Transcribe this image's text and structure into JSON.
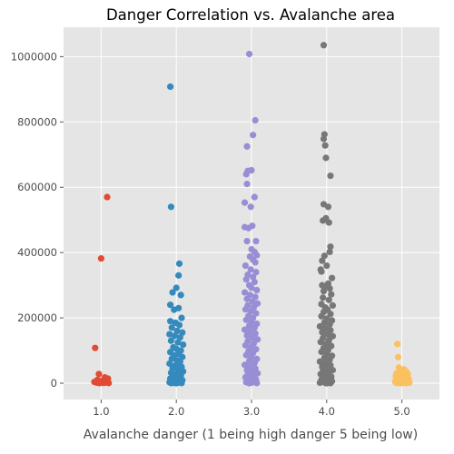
{
  "chart_data": {
    "type": "scatter",
    "title": "Danger Correlation vs. Avalanche area",
    "xlabel": "Avalanche danger (1 being high danger 5 being low)",
    "ylabel": "",
    "xlim": [
      0.5,
      5.5
    ],
    "ylim": [
      -50000,
      1090000
    ],
    "xticks": [
      1.0,
      2.0,
      3.0,
      4.0,
      5.0
    ],
    "xtick_labels": [
      "1.0",
      "2.0",
      "3.0",
      "4.0",
      "5.0"
    ],
    "yticks": [
      0,
      200000,
      400000,
      600000,
      800000,
      1000000
    ],
    "ytick_labels": [
      "0",
      "200000",
      "400000",
      "600000",
      "800000",
      "1000000"
    ],
    "grid": true,
    "plot_background": "#e5e5e5",
    "grid_color": "#ffffff",
    "series": [
      {
        "color": "#e24a33",
        "points": [
          [
            1.08,
            570000
          ],
          [
            1.0,
            382000
          ],
          [
            0.92,
            108000
          ],
          [
            0.97,
            28000
          ],
          [
            1.05,
            18000
          ],
          [
            1.09,
            14000
          ],
          [
            0.95,
            10000
          ],
          [
            1.02,
            8000
          ],
          [
            1.08,
            6000
          ],
          [
            0.91,
            4000
          ],
          [
            1.0,
            3000
          ],
          [
            1.06,
            2000
          ],
          [
            0.94,
            1500
          ],
          [
            1.03,
            1000
          ],
          [
            1.1,
            500
          ],
          [
            0.98,
            200
          ]
        ]
      },
      {
        "color": "#348abd",
        "points": [
          [
            1.92,
            908000
          ],
          [
            1.93,
            540000
          ],
          [
            2.04,
            366000
          ],
          [
            2.03,
            330000
          ],
          [
            2.0,
            292000
          ],
          [
            1.95,
            278000
          ],
          [
            2.06,
            270000
          ],
          [
            1.92,
            240000
          ],
          [
            2.03,
            230000
          ],
          [
            1.97,
            225000
          ],
          [
            2.07,
            200000
          ],
          [
            1.92,
            190000
          ],
          [
            1.99,
            185000
          ],
          [
            2.04,
            178000
          ],
          [
            1.94,
            170000
          ],
          [
            2.01,
            160000
          ],
          [
            2.08,
            155000
          ],
          [
            1.91,
            150000
          ],
          [
            1.98,
            145000
          ],
          [
            2.05,
            140000
          ],
          [
            1.93,
            130000
          ],
          [
            2.02,
            125000
          ],
          [
            2.09,
            118000
          ],
          [
            1.96,
            110000
          ],
          [
            2.0,
            105000
          ],
          [
            2.06,
            100000
          ],
          [
            1.92,
            95000
          ],
          [
            2.03,
            90000
          ],
          [
            1.97,
            85000
          ],
          [
            2.08,
            80000
          ],
          [
            1.94,
            75000
          ],
          [
            2.01,
            70000
          ],
          [
            2.05,
            65000
          ],
          [
            1.91,
            60000
          ],
          [
            1.99,
            55000
          ],
          [
            2.07,
            50000
          ],
          [
            1.95,
            45000
          ],
          [
            2.02,
            40000
          ],
          [
            2.09,
            36000
          ],
          [
            1.93,
            32000
          ],
          [
            2.0,
            28000
          ],
          [
            2.06,
            24000
          ],
          [
            1.96,
            20000
          ],
          [
            2.04,
            17000
          ],
          [
            1.92,
            14000
          ],
          [
            2.01,
            11000
          ],
          [
            2.08,
            9000
          ],
          [
            1.94,
            7000
          ],
          [
            1.98,
            5000
          ],
          [
            2.05,
            4000
          ],
          [
            1.91,
            3000
          ],
          [
            2.03,
            2000
          ],
          [
            1.97,
            1000
          ],
          [
            2.07,
            500
          ],
          [
            1.93,
            200
          ],
          [
            2.0,
            0
          ]
        ]
      },
      {
        "color": "#988ed5",
        "points": [
          [
            2.97,
            1008000
          ],
          [
            3.05,
            805000
          ],
          [
            3.02,
            760000
          ],
          [
            2.94,
            725000
          ],
          [
            2.95,
            650000
          ],
          [
            3.0,
            652000
          ],
          [
            2.93,
            640000
          ],
          [
            2.94,
            610000
          ],
          [
            3.04,
            570000
          ],
          [
            2.91,
            553000
          ],
          [
            2.99,
            540000
          ],
          [
            3.01,
            482000
          ],
          [
            2.91,
            478000
          ],
          [
            2.96,
            475000
          ],
          [
            2.94,
            435000
          ],
          [
            3.06,
            435000
          ],
          [
            3.0,
            410000
          ],
          [
            3.04,
            402000
          ],
          [
            3.07,
            392000
          ],
          [
            2.98,
            388000
          ],
          [
            3.02,
            378000
          ],
          [
            3.05,
            370000
          ],
          [
            2.92,
            360000
          ],
          [
            2.99,
            348000
          ],
          [
            3.06,
            340000
          ],
          [
            2.95,
            332000
          ],
          [
            3.02,
            325000
          ],
          [
            2.93,
            318000
          ],
          [
            3.04,
            310000
          ],
          [
            2.97,
            300000
          ],
          [
            3.0,
            292000
          ],
          [
            3.07,
            285000
          ],
          [
            2.91,
            278000
          ],
          [
            2.98,
            270000
          ],
          [
            3.05,
            264000
          ],
          [
            2.94,
            258000
          ],
          [
            3.01,
            250000
          ],
          [
            3.08,
            244000
          ],
          [
            2.95,
            238000
          ],
          [
            3.03,
            232000
          ],
          [
            2.92,
            226000
          ],
          [
            2.99,
            220000
          ],
          [
            3.06,
            214000
          ],
          [
            2.96,
            206000
          ],
          [
            3.02,
            200000
          ],
          [
            2.93,
            194000
          ],
          [
            3.0,
            188000
          ],
          [
            3.07,
            182000
          ],
          [
            2.97,
            176000
          ],
          [
            3.04,
            170000
          ],
          [
            2.91,
            164000
          ],
          [
            2.98,
            158000
          ],
          [
            3.05,
            152000
          ],
          [
            2.94,
            146000
          ],
          [
            3.01,
            140000
          ],
          [
            3.08,
            134000
          ],
          [
            2.95,
            128000
          ],
          [
            3.03,
            122000
          ],
          [
            2.92,
            116000
          ],
          [
            2.99,
            110000
          ],
          [
            3.06,
            104000
          ],
          [
            2.96,
            98000
          ],
          [
            3.02,
            92000
          ],
          [
            2.93,
            86000
          ],
          [
            3.0,
            80000
          ],
          [
            3.07,
            74000
          ],
          [
            2.97,
            68000
          ],
          [
            3.04,
            62000
          ],
          [
            2.91,
            56000
          ],
          [
            2.98,
            50000
          ],
          [
            3.05,
            45000
          ],
          [
            2.94,
            40000
          ],
          [
            3.01,
            35000
          ],
          [
            3.08,
            30000
          ],
          [
            2.95,
            26000
          ],
          [
            3.03,
            22000
          ],
          [
            2.92,
            18000
          ],
          [
            2.99,
            14000
          ],
          [
            3.06,
            11000
          ],
          [
            2.96,
            8000
          ],
          [
            3.02,
            5000
          ],
          [
            2.93,
            3000
          ],
          [
            3.0,
            1500
          ],
          [
            3.07,
            500
          ],
          [
            2.97,
            0
          ]
        ]
      },
      {
        "color": "#777777",
        "points": [
          [
            3.96,
            1035000
          ],
          [
            3.97,
            762000
          ],
          [
            3.96,
            748000
          ],
          [
            3.98,
            728000
          ],
          [
            3.99,
            690000
          ],
          [
            4.05,
            635000
          ],
          [
            3.96,
            548000
          ],
          [
            4.02,
            540000
          ],
          [
            3.99,
            505000
          ],
          [
            3.95,
            498000
          ],
          [
            4.03,
            492000
          ],
          [
            4.05,
            418000
          ],
          [
            4.04,
            402000
          ],
          [
            3.97,
            390000
          ],
          [
            3.94,
            375000
          ],
          [
            4.0,
            360000
          ],
          [
            3.92,
            348000
          ],
          [
            3.93,
            342000
          ],
          [
            4.07,
            322000
          ],
          [
            4.02,
            305000
          ],
          [
            3.94,
            300000
          ],
          [
            3.97,
            295000
          ],
          [
            4.04,
            290000
          ],
          [
            3.96,
            282000
          ],
          [
            4.06,
            272000
          ],
          [
            3.95,
            262000
          ],
          [
            4.03,
            255000
          ],
          [
            3.93,
            242000
          ],
          [
            4.08,
            238000
          ],
          [
            3.98,
            232000
          ],
          [
            4.01,
            225000
          ],
          [
            3.96,
            218000
          ],
          [
            4.05,
            212000
          ],
          [
            3.93,
            205000
          ],
          [
            4.0,
            198000
          ],
          [
            4.07,
            192000
          ],
          [
            3.97,
            186000
          ],
          [
            4.04,
            180000
          ],
          [
            3.91,
            174000
          ],
          [
            3.98,
            168000
          ],
          [
            4.05,
            162000
          ],
          [
            3.94,
            156000
          ],
          [
            4.01,
            150000
          ],
          [
            4.08,
            144000
          ],
          [
            3.95,
            138000
          ],
          [
            4.03,
            132000
          ],
          [
            3.92,
            126000
          ],
          [
            3.99,
            120000
          ],
          [
            4.06,
            114000
          ],
          [
            3.96,
            108000
          ],
          [
            4.02,
            102000
          ],
          [
            3.93,
            96000
          ],
          [
            4.0,
            90000
          ],
          [
            4.07,
            84000
          ],
          [
            3.97,
            78000
          ],
          [
            4.04,
            72000
          ],
          [
            3.91,
            66000
          ],
          [
            3.98,
            60000
          ],
          [
            4.05,
            55000
          ],
          [
            3.94,
            50000
          ],
          [
            4.01,
            45000
          ],
          [
            4.08,
            40000
          ],
          [
            3.95,
            36000
          ],
          [
            4.03,
            32000
          ],
          [
            3.92,
            28000
          ],
          [
            3.99,
            24000
          ],
          [
            4.06,
            20000
          ],
          [
            3.96,
            17000
          ],
          [
            4.02,
            14000
          ],
          [
            3.93,
            11000
          ],
          [
            4.0,
            8000
          ],
          [
            4.07,
            6000
          ],
          [
            3.97,
            4000
          ],
          [
            4.04,
            2500
          ],
          [
            3.91,
            1500
          ],
          [
            3.98,
            800
          ],
          [
            4.05,
            300
          ],
          [
            4.0,
            0
          ]
        ]
      },
      {
        "color": "#fbc15e",
        "points": [
          [
            4.94,
            120000
          ],
          [
            4.95,
            80000
          ],
          [
            4.96,
            48000
          ],
          [
            5.03,
            42000
          ],
          [
            4.98,
            38000
          ],
          [
            5.06,
            35000
          ],
          [
            4.93,
            30000
          ],
          [
            5.08,
            28000
          ],
          [
            5.0,
            25000
          ],
          [
            4.92,
            22000
          ],
          [
            5.05,
            19000
          ],
          [
            4.97,
            16000
          ],
          [
            5.09,
            13000
          ],
          [
            4.94,
            11000
          ],
          [
            5.02,
            9000
          ],
          [
            5.07,
            7000
          ],
          [
            4.91,
            5000
          ],
          [
            4.99,
            4000
          ],
          [
            5.04,
            3000
          ],
          [
            4.96,
            2000
          ],
          [
            5.1,
            1500
          ],
          [
            5.01,
            1000
          ],
          [
            4.93,
            500
          ],
          [
            5.06,
            200
          ],
          [
            4.98,
            0
          ]
        ]
      }
    ]
  }
}
